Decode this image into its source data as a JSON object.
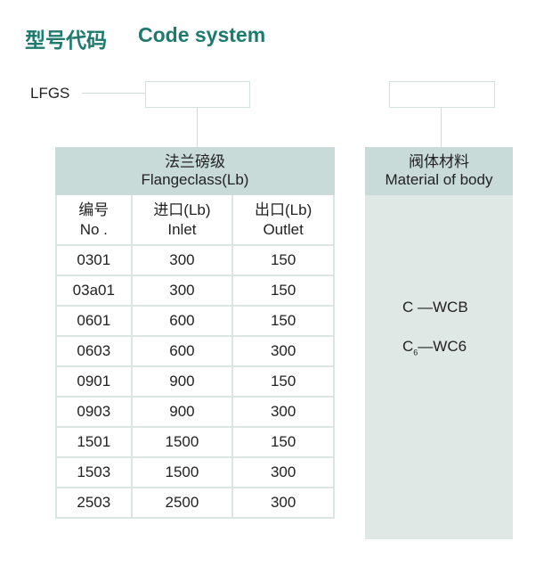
{
  "title": {
    "cn": "型号代码",
    "en": "Code system"
  },
  "code_prefix": "LFGS",
  "flange": {
    "header_cn": "法兰磅级",
    "header_en": "Flangeclass(Lb)",
    "columns": [
      {
        "cn": "编号",
        "en": "No ."
      },
      {
        "cn": "进口(Lb)",
        "en": "Inlet"
      },
      {
        "cn": "出口(Lb)",
        "en": "Outlet"
      }
    ],
    "rows": [
      [
        "0301",
        "300",
        "150"
      ],
      [
        "03a01",
        "300",
        "150"
      ],
      [
        "0601",
        "600",
        "150"
      ],
      [
        "0603",
        "600",
        "300"
      ],
      [
        "0901",
        "900",
        "150"
      ],
      [
        "0903",
        "900",
        "300"
      ],
      [
        "1501",
        "1500",
        "150"
      ],
      [
        "1503",
        "1500",
        "300"
      ],
      [
        "2503",
        "2500",
        "300"
      ]
    ]
  },
  "material": {
    "header_cn": "阀体材料",
    "header_en": "Material of body",
    "items": [
      {
        "code": "C",
        "sub": "",
        "value": "—WCB"
      },
      {
        "code": "C",
        "sub": "6",
        "value": "—WC6"
      }
    ]
  }
}
